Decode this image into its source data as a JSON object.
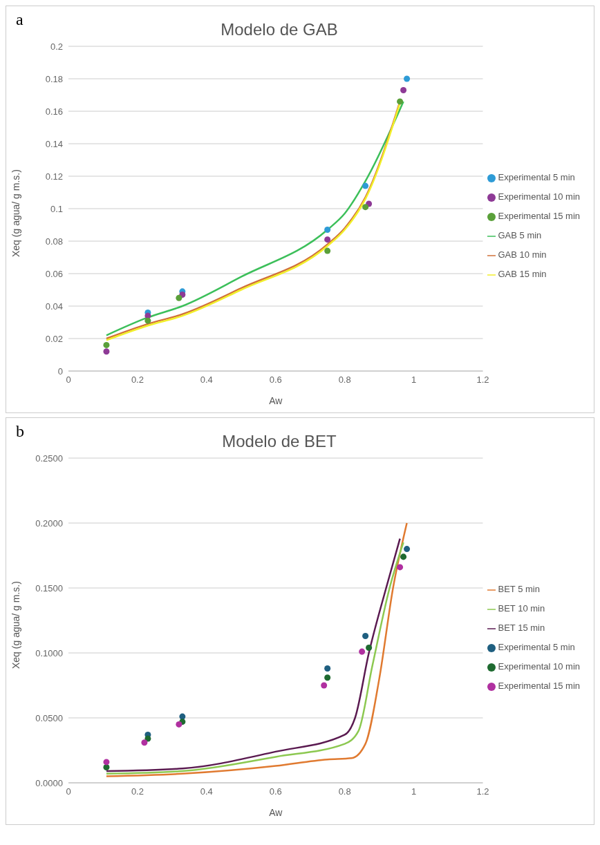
{
  "chart_data": [
    {
      "type": "scatter",
      "title": "Modelo de GAB",
      "xlabel": "Aw",
      "ylabel": "Xeq  (g agua/ g m.s.)",
      "annotations": [
        "a"
      ],
      "xlim": [
        0,
        1.2
      ],
      "xticks": [
        0,
        0.2,
        0.4,
        0.6,
        0.8,
        1,
        1.2
      ],
      "ylim": [
        0,
        0.2
      ],
      "yticks": [
        0,
        0.02,
        0.04,
        0.06,
        0.08,
        0.1,
        0.12,
        0.14,
        0.16,
        0.18,
        0.2
      ],
      "grid": "y",
      "legend": "right",
      "series": [
        {
          "name": "Experimental 5 min",
          "type": "scatter",
          "marker": "circle",
          "color": "#2e9bd6",
          "x": [
            0.23,
            0.33,
            0.75,
            0.86,
            0.98
          ],
          "values": [
            0.036,
            0.049,
            0.087,
            0.114,
            0.18
          ]
        },
        {
          "name": "Experimental 10 min",
          "type": "scatter",
          "marker": "circle",
          "color": "#8e3a96",
          "x": [
            0.11,
            0.23,
            0.33,
            0.75,
            0.87,
            0.97
          ],
          "values": [
            0.012,
            0.034,
            0.047,
            0.081,
            0.103,
            0.173
          ]
        },
        {
          "name": "Experimental 15 min",
          "type": "scatter",
          "marker": "circle",
          "color": "#5aa03a",
          "x": [
            0.11,
            0.23,
            0.32,
            0.75,
            0.86,
            0.96
          ],
          "values": [
            0.016,
            0.031,
            0.045,
            0.074,
            0.101,
            0.166
          ]
        },
        {
          "name": "GAB 5 min",
          "type": "line",
          "marker": "none",
          "color": "#3cbf5a",
          "x": [
            0.11,
            0.23,
            0.33,
            0.5,
            0.75,
            0.8,
            0.86,
            0.97
          ],
          "values": [
            0.022,
            0.033,
            0.04,
            0.058,
            0.087,
            0.097,
            0.117,
            0.166
          ]
        },
        {
          "name": "GAB 10 min",
          "type": "line",
          "marker": "none",
          "color": "#d0703a",
          "x": [
            0.11,
            0.23,
            0.33,
            0.5,
            0.75,
            0.8,
            0.86,
            0.96
          ],
          "values": [
            0.02,
            0.029,
            0.035,
            0.051,
            0.078,
            0.088,
            0.107,
            0.166
          ]
        },
        {
          "name": "GAB 15 min",
          "type": "line",
          "marker": "none",
          "color": "#f2ef2a",
          "x": [
            0.11,
            0.23,
            0.33,
            0.5,
            0.75,
            0.8,
            0.86,
            0.96
          ],
          "values": [
            0.019,
            0.028,
            0.034,
            0.05,
            0.077,
            0.087,
            0.106,
            0.165
          ]
        }
      ]
    },
    {
      "type": "scatter",
      "title": "Modelo de BET",
      "xlabel": "Aw",
      "ylabel": "Xeq  (g agua/ g m.s.)",
      "annotations": [
        "b"
      ],
      "xlim": [
        0,
        1.2
      ],
      "xticks": [
        0,
        0.2,
        0.4,
        0.6,
        0.8,
        1,
        1.2
      ],
      "ylim": [
        0,
        0.25
      ],
      "yticks": [
        {
          "value": 0,
          "label": "0.0000"
        },
        {
          "value": 0.05,
          "label": "0.0500"
        },
        {
          "value": 0.1,
          "label": "0.1000"
        },
        {
          "value": 0.15,
          "label": "0.1500"
        },
        {
          "value": 0.2,
          "label": "0.2000"
        },
        {
          "value": 0.25,
          "label": "0.2500"
        }
      ],
      "grid": "y",
      "legend": "right",
      "series": [
        {
          "name": "BET 5 min",
          "type": "line",
          "marker": "none",
          "color": "#e07a30",
          "x": [
            0.11,
            0.33,
            0.6,
            0.75,
            0.82,
            0.86,
            0.9,
            0.94,
            0.98
          ],
          "values": [
            0.005,
            0.007,
            0.013,
            0.018,
            0.019,
            0.03,
            0.08,
            0.15,
            0.2
          ]
        },
        {
          "name": "BET 10 min",
          "type": "line",
          "marker": "none",
          "color": "#8cc850",
          "x": [
            0.11,
            0.33,
            0.6,
            0.8,
            0.84,
            0.88,
            0.93,
            0.97
          ],
          "values": [
            0.007,
            0.009,
            0.02,
            0.03,
            0.04,
            0.09,
            0.15,
            0.185
          ]
        },
        {
          "name": "BET 15 min",
          "type": "line",
          "marker": "none",
          "color": "#5a1a50",
          "x": [
            0.11,
            0.33,
            0.6,
            0.8,
            0.83,
            0.87,
            0.92,
            0.96
          ],
          "values": [
            0.009,
            0.011,
            0.024,
            0.037,
            0.05,
            0.1,
            0.15,
            0.188
          ]
        },
        {
          "name": "Experimental 5 min",
          "type": "scatter",
          "marker": "circle",
          "color": "#1f5f80",
          "x": [
            0.23,
            0.33,
            0.75,
            0.86,
            0.98
          ],
          "values": [
            0.037,
            0.051,
            0.088,
            0.113,
            0.18
          ]
        },
        {
          "name": "Experimental 10 min",
          "type": "scatter",
          "marker": "circle",
          "color": "#1e6a30",
          "x": [
            0.11,
            0.23,
            0.33,
            0.75,
            0.87,
            0.97
          ],
          "values": [
            0.012,
            0.034,
            0.047,
            0.081,
            0.104,
            0.174
          ]
        },
        {
          "name": "Experimental 15 min",
          "type": "scatter",
          "marker": "circle",
          "color": "#b030a0",
          "x": [
            0.11,
            0.22,
            0.32,
            0.74,
            0.85,
            0.96
          ],
          "values": [
            0.016,
            0.031,
            0.045,
            0.075,
            0.101,
            0.166
          ]
        }
      ]
    }
  ]
}
